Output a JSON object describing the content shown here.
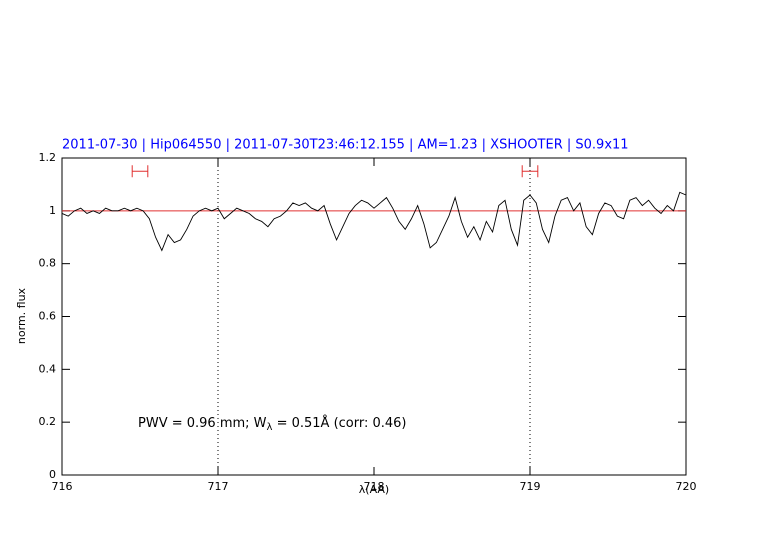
{
  "chart_data": {
    "type": "line",
    "title": "2011-07-30 | Hip064550 | 2011-07-30T23:46:12.155 | AM=1.23 | XSHOOTER | S0.9x11",
    "xlabel": "λ(AA)",
    "ylabel": "norm. flux",
    "annotation": [
      "PWV = 0.96 mm; W",
      "λ",
      " = 0.51Å (corr: 0.46)"
    ],
    "annotation_color": "#0000ff",
    "xlim": [
      716,
      720
    ],
    "ylim": [
      0,
      1.2
    ],
    "xticks": [
      716,
      717,
      718,
      719,
      720
    ],
    "yticks": [
      0,
      0.2,
      0.4,
      0.6,
      0.8,
      1,
      1.2
    ],
    "reference_line": {
      "value": 1,
      "color": "#e03030"
    },
    "vlines": [
      717,
      719
    ],
    "intervals": [
      {
        "x": [
          716.45,
          716.55
        ],
        "y": 1.15,
        "color": "#e03030"
      },
      {
        "x": [
          718.95,
          719.05
        ],
        "y": 1.15,
        "color": "#e03030"
      }
    ],
    "x": [
      716.0,
      716.04,
      716.08,
      716.12,
      716.16,
      716.2,
      716.24,
      716.28,
      716.32,
      716.36,
      716.4,
      716.44,
      716.48,
      716.52,
      716.56,
      716.6,
      716.64,
      716.68,
      716.72,
      716.76,
      716.8,
      716.84,
      716.88,
      716.92,
      716.96,
      717.0,
      717.04,
      717.08,
      717.12,
      717.16,
      717.2,
      717.24,
      717.28,
      717.32,
      717.36,
      717.4,
      717.44,
      717.48,
      717.52,
      717.56,
      717.6,
      717.64,
      717.68,
      717.72,
      717.76,
      717.8,
      717.84,
      717.88,
      717.92,
      717.96,
      718.0,
      718.04,
      718.08,
      718.12,
      718.16,
      718.2,
      718.24,
      718.28,
      718.32,
      718.36,
      718.4,
      718.44,
      718.48,
      718.52,
      718.56,
      718.6,
      718.64,
      718.68,
      718.72,
      718.76,
      718.8,
      718.84,
      718.88,
      718.92,
      718.96,
      719.0,
      719.04,
      719.08,
      719.12,
      719.16,
      719.2,
      719.24,
      719.28,
      719.32,
      719.36,
      719.4,
      719.44,
      719.48,
      719.52,
      719.56,
      719.6,
      719.64,
      719.68,
      719.72,
      719.76,
      719.8,
      719.84,
      719.88,
      719.92,
      719.96,
      720.0
    ],
    "series": [
      {
        "color": "#000000",
        "values": [
          0.99,
          0.98,
          1.0,
          1.01,
          0.99,
          1.0,
          0.99,
          1.01,
          1.0,
          1.0,
          1.01,
          1.0,
          1.01,
          1.0,
          0.97,
          0.9,
          0.85,
          0.91,
          0.88,
          0.89,
          0.93,
          0.98,
          1.0,
          1.01,
          1.0,
          1.01,
          0.97,
          0.99,
          1.01,
          1.0,
          0.99,
          0.97,
          0.96,
          0.94,
          0.97,
          0.98,
          1.0,
          1.03,
          1.02,
          1.03,
          1.01,
          1.0,
          1.02,
          0.95,
          0.89,
          0.94,
          0.99,
          1.02,
          1.04,
          1.03,
          1.01,
          1.03,
          1.05,
          1.01,
          0.96,
          0.93,
          0.97,
          1.02,
          0.95,
          0.86,
          0.88,
          0.93,
          0.98,
          1.05,
          0.96,
          0.9,
          0.94,
          0.89,
          0.96,
          0.92,
          1.02,
          1.04,
          0.93,
          0.87,
          1.04,
          1.06,
          1.03,
          0.93,
          0.88,
          0.98,
          1.04,
          1.05,
          1.0,
          1.03,
          0.94,
          0.91,
          0.99,
          1.03,
          1.02,
          0.98,
          0.97,
          1.04,
          1.05,
          1.02,
          1.04,
          1.01,
          0.99,
          1.02,
          1.0,
          1.07,
          1.06
        ]
      }
    ]
  }
}
